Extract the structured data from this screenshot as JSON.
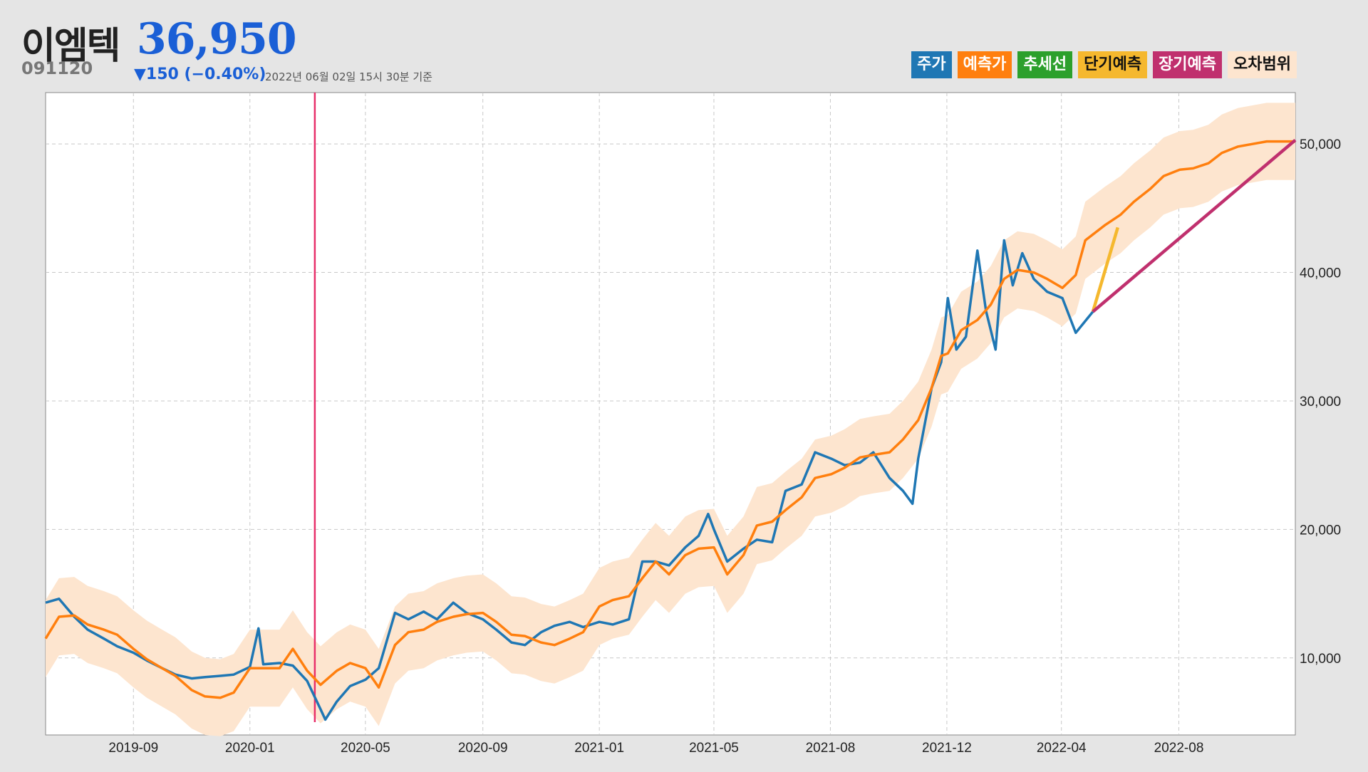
{
  "header": {
    "name": "이엠텍",
    "price": "36,950",
    "code": "091120",
    "change": "▼150 (−0.40%)",
    "asof": "2022년 06월 02일 15시 30분 기준"
  },
  "legend": [
    {
      "label": "주가",
      "bg": "#1f77b4",
      "fg": "#ffffff"
    },
    {
      "label": "예측가",
      "bg": "#ff7f0e",
      "fg": "#ffffff"
    },
    {
      "label": "추세선",
      "bg": "#2ca02c",
      "fg": "#ffffff"
    },
    {
      "label": "단기예측",
      "bg": "#f5b82e",
      "fg": "#111111"
    },
    {
      "label": "장기예측",
      "bg": "#c0306e",
      "fg": "#ffffff"
    },
    {
      "label": "오차범위",
      "bg": "#fde5cf",
      "fg": "#111111"
    }
  ],
  "chart_data": {
    "type": "line",
    "xlim": [
      "2019-06-01",
      "2022-12-31"
    ],
    "ylim": [
      4000,
      54000
    ],
    "y_ticks": [
      10000,
      20000,
      30000,
      40000,
      50000
    ],
    "y_tick_labels": [
      "10,000",
      "20,000",
      "30,000",
      "40,000",
      "50,000"
    ],
    "x_ticks": [
      "2019-09-01",
      "2020-01-01",
      "2020-05-01",
      "2020-09-01",
      "2021-01-01",
      "2021-05-01",
      "2021-08-31",
      "2021-12-31",
      "2022-04-30",
      "2022-08-31"
    ],
    "x_tick_labels": [
      "2019-09",
      "2020-01",
      "2020-05",
      "2020-09",
      "2021-01",
      "2021-05",
      "2021-08",
      "2021-12",
      "2022-04",
      "2022-08"
    ],
    "grid": true,
    "y_axis_side": "right",
    "marker_line": {
      "date": "2020-03-09",
      "y_range": [
        5000,
        54000
      ],
      "color": "#e8306a"
    },
    "series": [
      {
        "key": "price",
        "color": "#1f77b4",
        "points": [
          [
            "2019-06-01",
            14300
          ],
          [
            "2019-06-15",
            14600
          ],
          [
            "2019-07-01",
            13200
          ],
          [
            "2019-07-15",
            12200
          ],
          [
            "2019-08-01",
            11500
          ],
          [
            "2019-08-15",
            10900
          ],
          [
            "2019-09-01",
            10400
          ],
          [
            "2019-09-15",
            9800
          ],
          [
            "2019-10-01",
            9200
          ],
          [
            "2019-10-15",
            8700
          ],
          [
            "2019-11-01",
            8400
          ],
          [
            "2019-11-15",
            8500
          ],
          [
            "2019-12-01",
            8600
          ],
          [
            "2019-12-15",
            8700
          ],
          [
            "2020-01-01",
            9300
          ],
          [
            "2020-01-10",
            12300
          ],
          [
            "2020-01-15",
            9500
          ],
          [
            "2020-02-01",
            9600
          ],
          [
            "2020-02-15",
            9400
          ],
          [
            "2020-03-01",
            8200
          ],
          [
            "2020-03-15",
            6000
          ],
          [
            "2020-03-20",
            5200
          ],
          [
            "2020-04-01",
            6600
          ],
          [
            "2020-04-15",
            7800
          ],
          [
            "2020-05-01",
            8300
          ],
          [
            "2020-05-15",
            9200
          ],
          [
            "2020-06-01",
            13500
          ],
          [
            "2020-06-15",
            13000
          ],
          [
            "2020-07-01",
            13600
          ],
          [
            "2020-07-15",
            13000
          ],
          [
            "2020-08-01",
            14300
          ],
          [
            "2020-08-15",
            13500
          ],
          [
            "2020-09-01",
            13000
          ],
          [
            "2020-09-15",
            12200
          ],
          [
            "2020-10-01",
            11200
          ],
          [
            "2020-10-15",
            11000
          ],
          [
            "2020-11-01",
            12000
          ],
          [
            "2020-11-15",
            12500
          ],
          [
            "2020-12-01",
            12800
          ],
          [
            "2020-12-15",
            12400
          ],
          [
            "2021-01-01",
            12800
          ],
          [
            "2021-01-15",
            12600
          ],
          [
            "2021-02-01",
            13000
          ],
          [
            "2021-02-15",
            17500
          ],
          [
            "2021-03-01",
            17500
          ],
          [
            "2021-03-15",
            17200
          ],
          [
            "2021-04-01",
            18600
          ],
          [
            "2021-04-15",
            19500
          ],
          [
            "2021-04-25",
            21200
          ],
          [
            "2021-05-01",
            20000
          ],
          [
            "2021-05-15",
            17500
          ],
          [
            "2021-06-01",
            18500
          ],
          [
            "2021-06-15",
            19200
          ],
          [
            "2021-07-01",
            19000
          ],
          [
            "2021-07-15",
            23000
          ],
          [
            "2021-08-01",
            23500
          ],
          [
            "2021-08-15",
            26000
          ],
          [
            "2021-09-01",
            25500
          ],
          [
            "2021-09-15",
            25000
          ],
          [
            "2021-10-01",
            25200
          ],
          [
            "2021-10-15",
            26000
          ],
          [
            "2021-11-01",
            24000
          ],
          [
            "2021-11-15",
            23000
          ],
          [
            "2021-11-25",
            22000
          ],
          [
            "2021-12-01",
            25500
          ],
          [
            "2021-12-15",
            31000
          ],
          [
            "2021-12-25",
            33000
          ],
          [
            "2022-01-01",
            38000
          ],
          [
            "2022-01-10",
            34000
          ],
          [
            "2022-01-20",
            35000
          ],
          [
            "2022-02-01",
            41700
          ],
          [
            "2022-02-10",
            37000
          ],
          [
            "2022-02-20",
            34000
          ],
          [
            "2022-03-01",
            42500
          ],
          [
            "2022-03-10",
            39000
          ],
          [
            "2022-03-20",
            41500
          ],
          [
            "2022-04-01",
            39500
          ],
          [
            "2022-04-15",
            38500
          ],
          [
            "2022-05-01",
            38000
          ],
          [
            "2022-05-15",
            35300
          ],
          [
            "2022-06-02",
            36950
          ]
        ]
      },
      {
        "key": "forecast",
        "color": "#ff7f0e",
        "points": [
          [
            "2019-06-01",
            11500
          ],
          [
            "2019-06-15",
            13200
          ],
          [
            "2019-07-01",
            13300
          ],
          [
            "2019-07-15",
            12600
          ],
          [
            "2019-08-01",
            12200
          ],
          [
            "2019-08-15",
            11800
          ],
          [
            "2019-09-01",
            10700
          ],
          [
            "2019-09-15",
            9900
          ],
          [
            "2019-10-01",
            9200
          ],
          [
            "2019-10-15",
            8600
          ],
          [
            "2019-11-01",
            7500
          ],
          [
            "2019-11-15",
            7000
          ],
          [
            "2019-12-01",
            6900
          ],
          [
            "2019-12-15",
            7300
          ],
          [
            "2020-01-01",
            9200
          ],
          [
            "2020-01-15",
            9200
          ],
          [
            "2020-02-01",
            9200
          ],
          [
            "2020-02-15",
            10700
          ],
          [
            "2020-03-01",
            9000
          ],
          [
            "2020-03-15",
            7900
          ],
          [
            "2020-04-01",
            9000
          ],
          [
            "2020-04-15",
            9600
          ],
          [
            "2020-05-01",
            9200
          ],
          [
            "2020-05-15",
            7700
          ],
          [
            "2020-06-01",
            11000
          ],
          [
            "2020-06-15",
            12000
          ],
          [
            "2020-07-01",
            12200
          ],
          [
            "2020-07-15",
            12800
          ],
          [
            "2020-08-01",
            13200
          ],
          [
            "2020-08-15",
            13400
          ],
          [
            "2020-09-01",
            13500
          ],
          [
            "2020-09-15",
            12800
          ],
          [
            "2020-10-01",
            11800
          ],
          [
            "2020-10-15",
            11700
          ],
          [
            "2020-11-01",
            11200
          ],
          [
            "2020-11-15",
            11000
          ],
          [
            "2020-12-01",
            11500
          ],
          [
            "2020-12-15",
            12000
          ],
          [
            "2021-01-01",
            14000
          ],
          [
            "2021-01-15",
            14500
          ],
          [
            "2021-02-01",
            14800
          ],
          [
            "2021-02-15",
            16200
          ],
          [
            "2021-03-01",
            17500
          ],
          [
            "2021-03-15",
            16500
          ],
          [
            "2021-04-01",
            18000
          ],
          [
            "2021-04-15",
            18500
          ],
          [
            "2021-05-01",
            18600
          ],
          [
            "2021-05-15",
            16500
          ],
          [
            "2021-06-01",
            18000
          ],
          [
            "2021-06-15",
            20300
          ],
          [
            "2021-07-01",
            20600
          ],
          [
            "2021-07-15",
            21500
          ],
          [
            "2021-08-01",
            22500
          ],
          [
            "2021-08-15",
            24000
          ],
          [
            "2021-09-01",
            24300
          ],
          [
            "2021-09-15",
            24800
          ],
          [
            "2021-10-01",
            25600
          ],
          [
            "2021-10-15",
            25800
          ],
          [
            "2021-11-01",
            26000
          ],
          [
            "2021-11-15",
            27000
          ],
          [
            "2021-12-01",
            28500
          ],
          [
            "2021-12-15",
            31000
          ],
          [
            "2021-12-25",
            33500
          ],
          [
            "2022-01-01",
            33700
          ],
          [
            "2022-01-15",
            35500
          ],
          [
            "2022-02-01",
            36300
          ],
          [
            "2022-02-15",
            37500
          ],
          [
            "2022-03-01",
            39500
          ],
          [
            "2022-03-15",
            40200
          ],
          [
            "2022-04-01",
            40000
          ],
          [
            "2022-04-15",
            39500
          ],
          [
            "2022-05-01",
            38800
          ],
          [
            "2022-05-15",
            39800
          ],
          [
            "2022-05-25",
            42500
          ],
          [
            "2022-06-15",
            43700
          ],
          [
            "2022-07-01",
            44500
          ],
          [
            "2022-07-15",
            45500
          ],
          [
            "2022-08-01",
            46500
          ],
          [
            "2022-08-15",
            47500
          ],
          [
            "2022-09-01",
            48000
          ],
          [
            "2022-09-15",
            48100
          ],
          [
            "2022-10-01",
            48500
          ],
          [
            "2022-10-15",
            49300
          ],
          [
            "2022-11-01",
            49800
          ],
          [
            "2022-12-01",
            50200
          ],
          [
            "2022-12-31",
            50200
          ]
        ]
      },
      {
        "key": "short_term",
        "color": "#f5b82e",
        "points": [
          [
            "2022-06-02",
            36950
          ],
          [
            "2022-06-28",
            43500
          ]
        ]
      },
      {
        "key": "long_term",
        "color": "#c0306e",
        "points": [
          [
            "2022-06-02",
            36950
          ],
          [
            "2022-12-31",
            50300
          ]
        ]
      }
    ],
    "error_band": {
      "color": "#fde5cf",
      "width": 3000,
      "base": "forecast"
    }
  }
}
